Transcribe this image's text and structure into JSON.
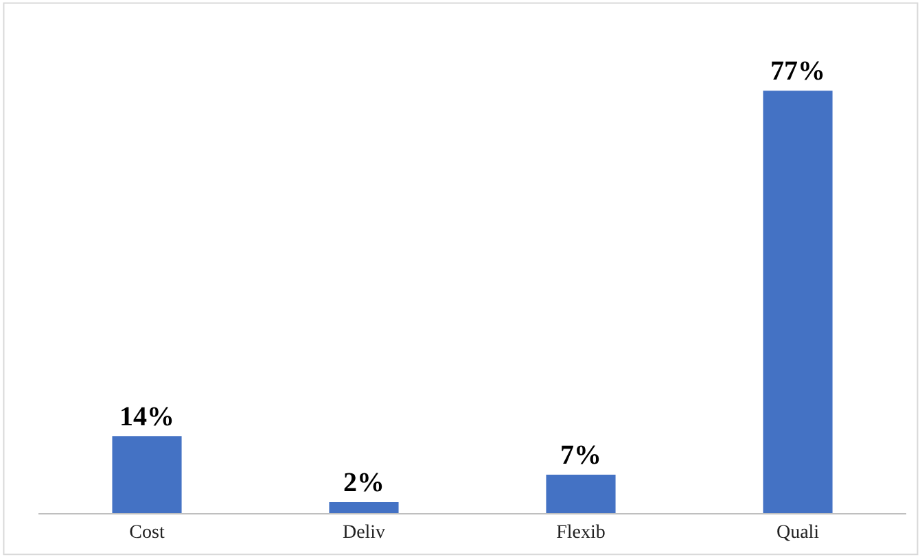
{
  "chart_data": {
    "type": "bar",
    "categories": [
      "Cost",
      "Deliv",
      "Flexib",
      "Quali"
    ],
    "values": [
      14,
      2,
      7,
      77
    ],
    "value_labels": [
      "14%",
      "2%",
      "7%",
      "77%"
    ],
    "color": "#4472c4"
  }
}
